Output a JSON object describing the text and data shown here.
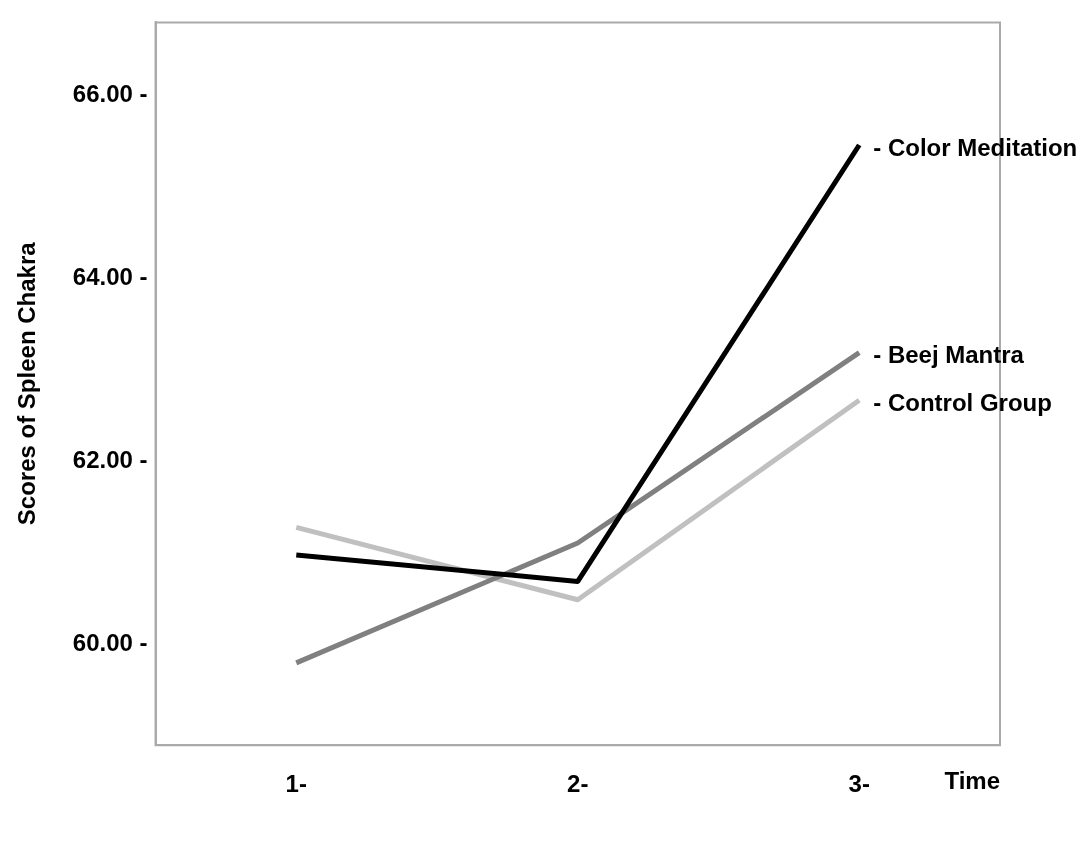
{
  "chart_data": {
    "type": "line",
    "xlabel": "Time",
    "ylabel": "Scores of Spleen Chakra",
    "categories": [
      "1-",
      "2-",
      "3-"
    ],
    "series": [
      {
        "name": "- Color Meditation",
        "color": "#000000",
        "values": [
          60.98,
          60.69,
          65.46
        ]
      },
      {
        "name": "- Beej Mantra",
        "color": "#808080",
        "values": [
          59.8,
          61.11,
          63.19
        ]
      },
      {
        "name": "- Control Group",
        "color": "#c0c0c0",
        "values": [
          61.28,
          60.49,
          62.67
        ]
      }
    ],
    "ylim": [
      58.9,
      66.8
    ],
    "yticks": [
      {
        "value": 60,
        "label": "60.00 -"
      },
      {
        "value": 62,
        "label": "62.00 -"
      },
      {
        "value": 64,
        "label": "64.00 -"
      },
      {
        "value": 66,
        "label": "66.00 -"
      }
    ],
    "grid": false,
    "legend": false,
    "marker": "none",
    "line_style": "solid"
  }
}
